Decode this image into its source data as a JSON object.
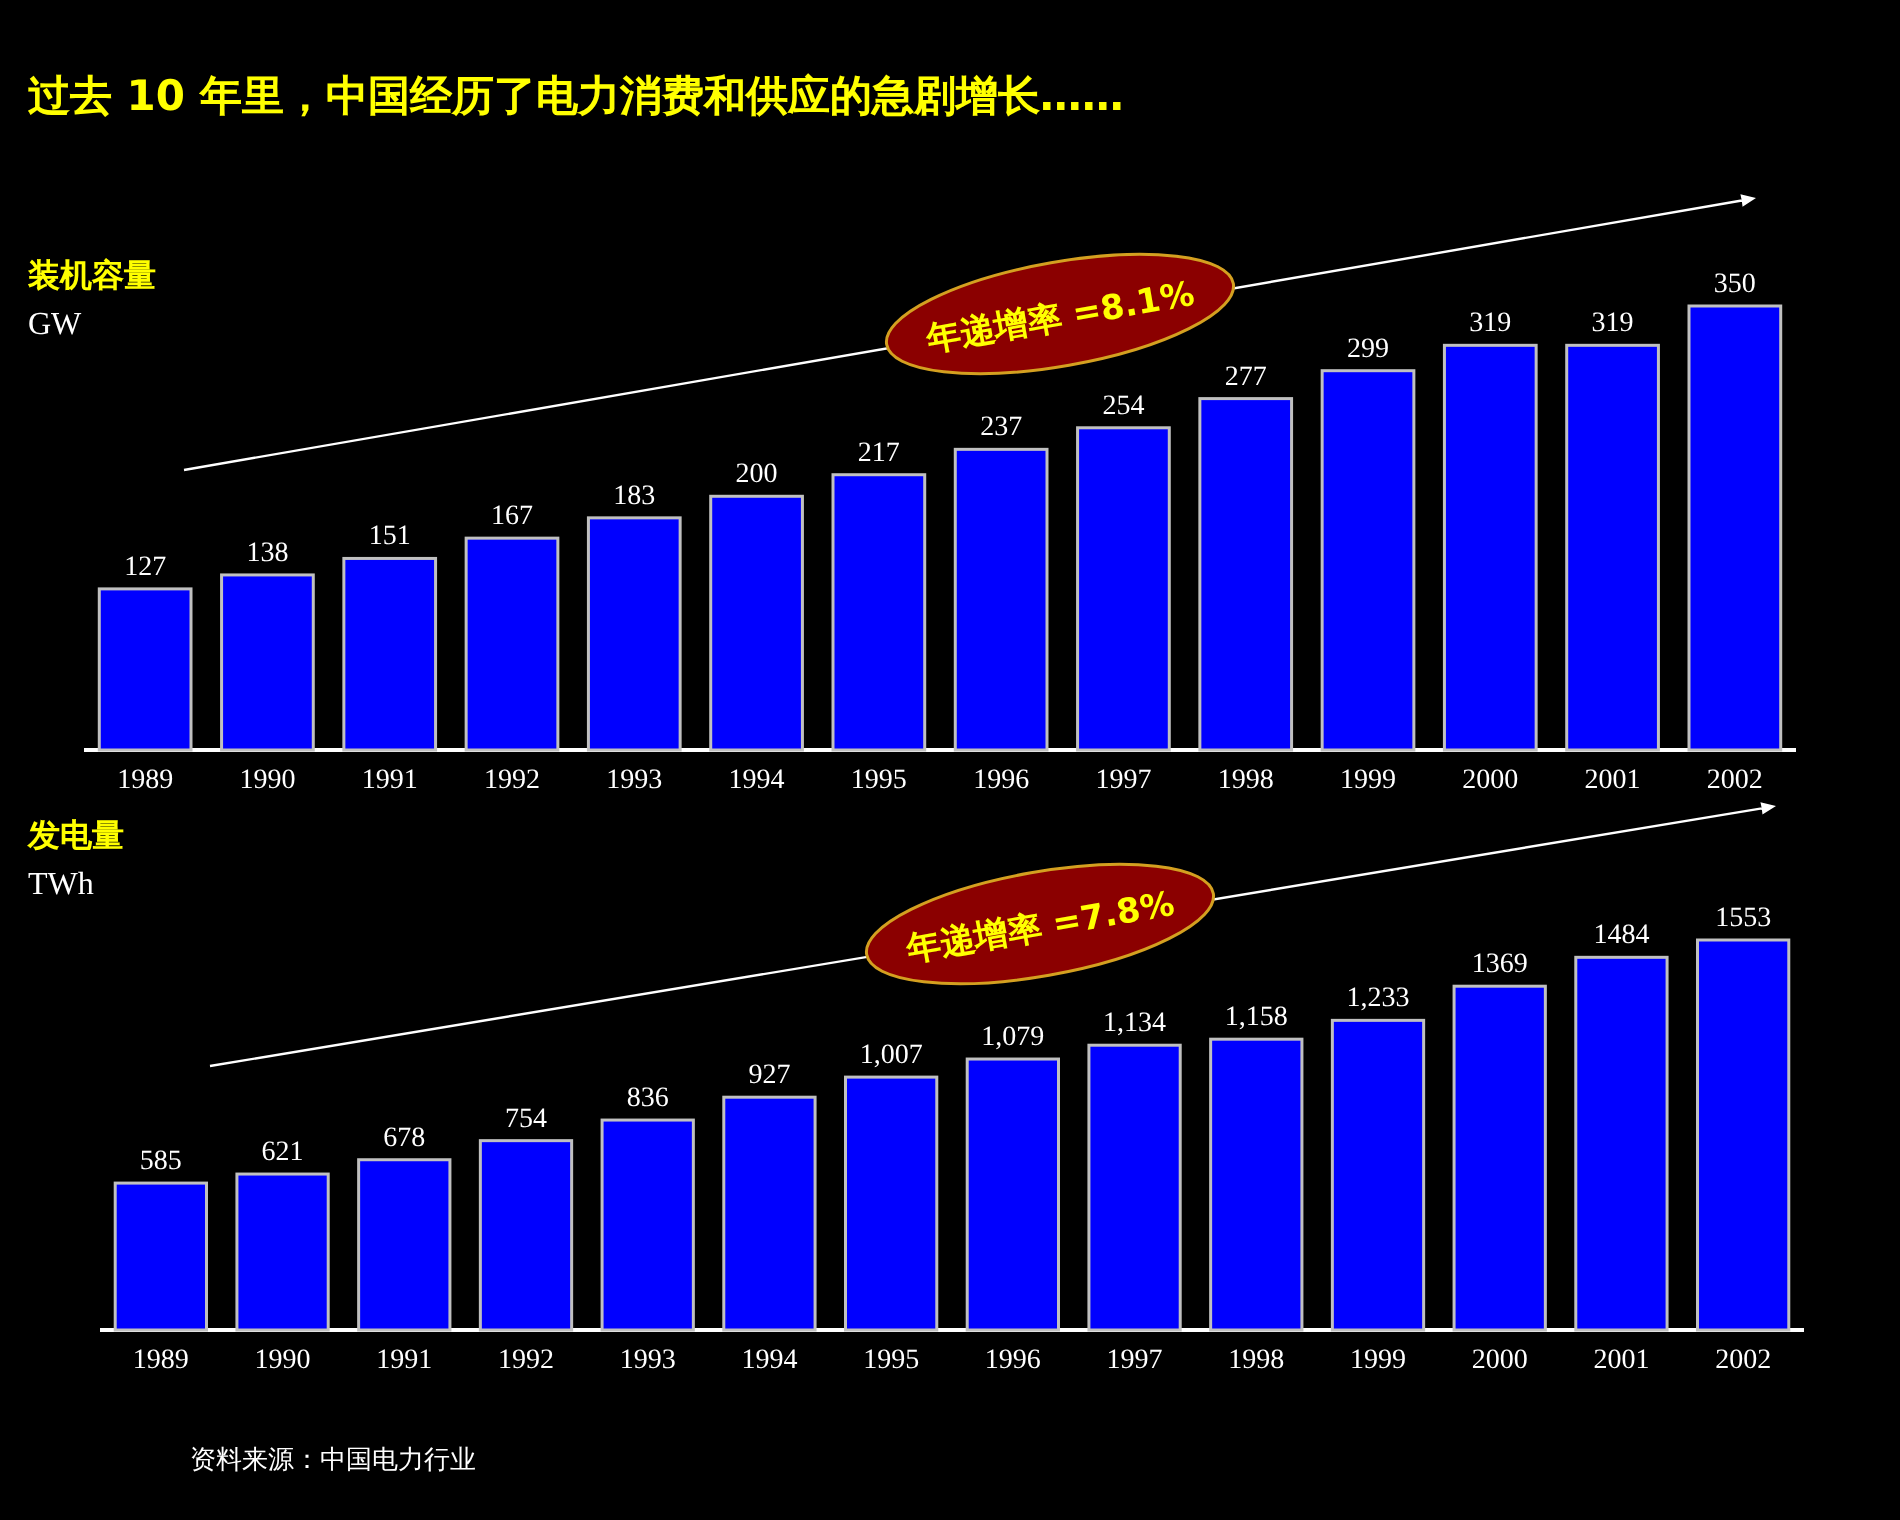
{
  "chart_data": [
    {
      "type": "bar",
      "title": "过去 10 年里，中国经历了电力消费和供应的急剧增长……",
      "categories": [
        "1989",
        "1990",
        "1991",
        "1992",
        "1993",
        "1994",
        "1995",
        "1996",
        "1997",
        "1998",
        "1999",
        "2000",
        "2001",
        "2002"
      ],
      "values": [
        127,
        138,
        151,
        167,
        183,
        200,
        217,
        237,
        254,
        277,
        299,
        319,
        319,
        350
      ],
      "color": "#0000ff",
      "data_labels": true,
      "annotations": [
        "装机容量",
        "GW",
        "年递增率 =8.1%"
      ]
    },
    {
      "type": "bar",
      "categories": [
        "1989",
        "1990",
        "1991",
        "1992",
        "1993",
        "1994",
        "1995",
        "1996",
        "1997",
        "1998",
        "1999",
        "2000",
        "2001",
        "2002"
      ],
      "values": [
        585,
        621,
        678,
        754,
        836,
        927,
        1007,
        1079,
        1134,
        1158,
        1233,
        1369,
        1484,
        1553
      ],
      "color": "#0000ff",
      "value_labels": [
        "585",
        "621",
        "678",
        "754",
        "836",
        "927",
        "1,007",
        "1,079",
        "1,134",
        "1,158",
        "1,233",
        "1369",
        "1484",
        "1553"
      ],
      "annotations": [
        "发电量",
        "TWh",
        "年递增率 =7.8%",
        "资料来源：中国电力行业"
      ]
    }
  ]
}
